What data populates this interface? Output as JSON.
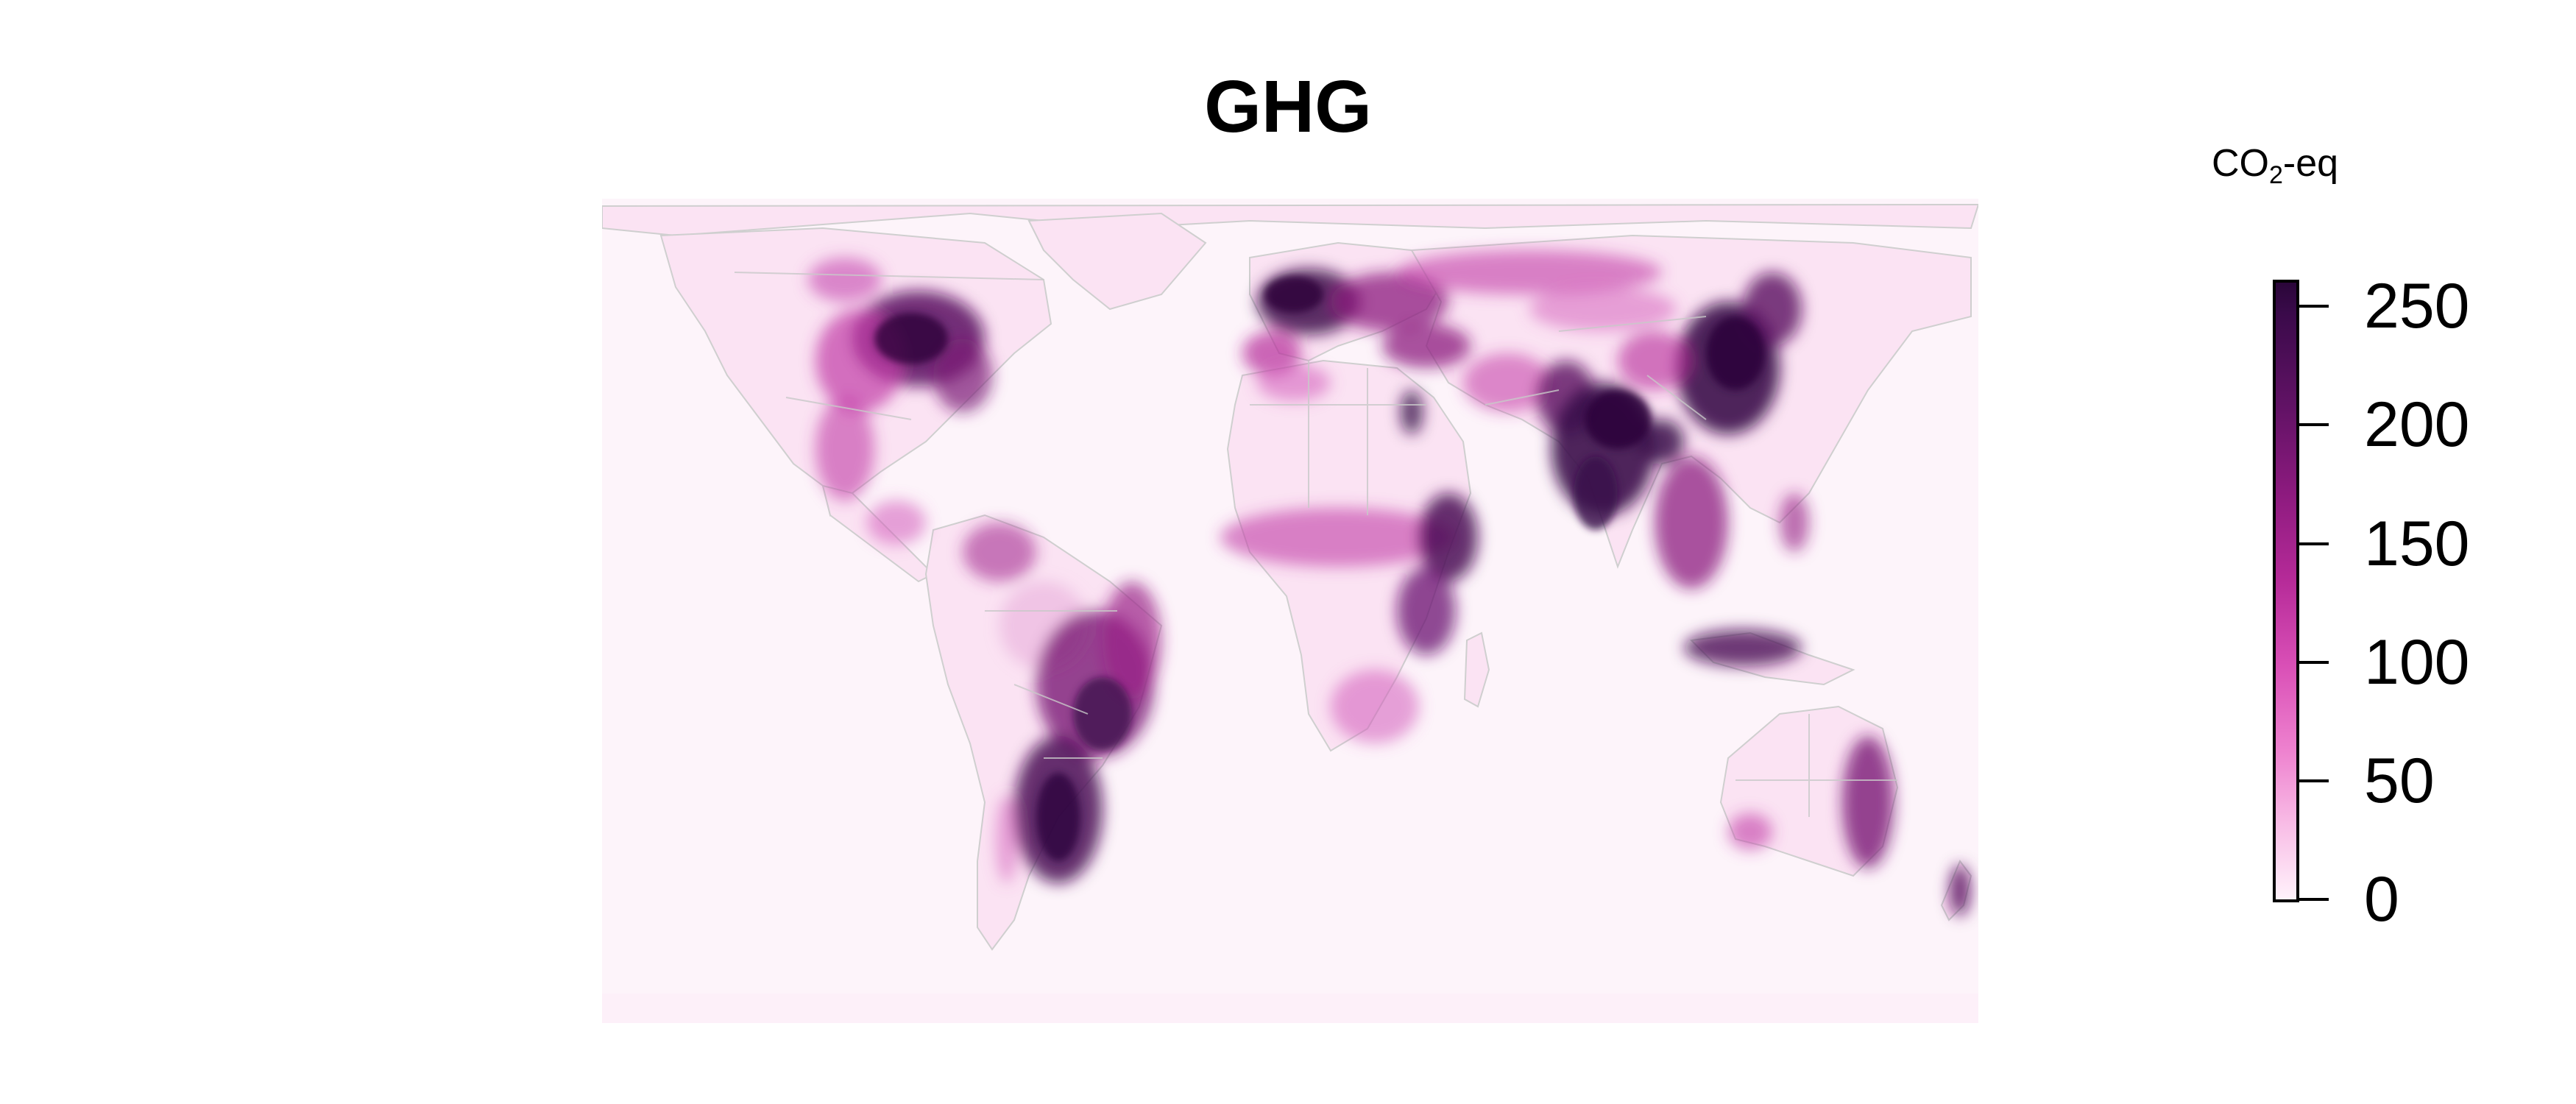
{
  "title": "GHG",
  "legend": {
    "unit_main": "CO",
    "unit_sub": "2",
    "unit_suffix": "-eq",
    "ticks": [
      "0",
      "50",
      "100",
      "150",
      "200",
      "250"
    ],
    "range": [
      0,
      260
    ],
    "colors": [
      "#fff2fb",
      "#f8bde6",
      "#ee82cf",
      "#d94fb6",
      "#b52a98",
      "#8c1a7e",
      "#611265",
      "#2a0639"
    ]
  },
  "map": {
    "projection": "equirectangular world",
    "land_color": "#fdeaf7",
    "border_color": "#c8c8c8"
  }
}
